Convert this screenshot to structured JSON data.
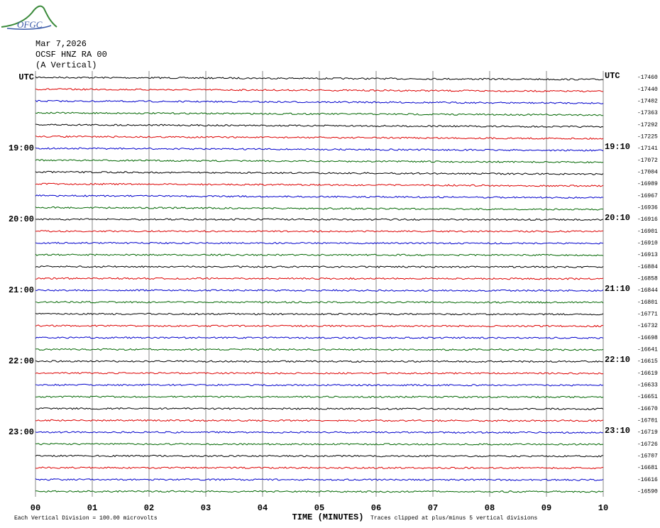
{
  "logo": "OFGC",
  "header": {
    "date": "Mar 7,2026",
    "station": "OCSF HNZ RA 00",
    "component": "(A Vertical)"
  },
  "left_labels": [
    "UTC",
    "19:00",
    "20:00",
    "21:00",
    "22:00",
    "23:00"
  ],
  "right_labels": [
    "UTC",
    "19:10",
    "20:10",
    "21:10",
    "22:10",
    "23:10"
  ],
  "offsets": [
    -17460,
    -17440,
    -17402,
    -17363,
    -17292,
    -17225,
    -17141,
    -17072,
    -17004,
    -16989,
    -16967,
    -16936,
    -16916,
    -16901,
    -16910,
    -16913,
    -16884,
    -16858,
    -16844,
    -16801,
    -16771,
    -16732,
    -16698,
    -16641,
    -16615,
    -16619,
    -16633,
    -16651,
    -16670,
    -16701,
    -16719,
    -16726,
    -16707,
    -16681,
    -16616,
    -16590
  ],
  "x_ticks": [
    "00",
    "01",
    "02",
    "03",
    "04",
    "05",
    "06",
    "07",
    "08",
    "09",
    "10"
  ],
  "footer": {
    "scale": "Each Vertical Division =  100.00 microvolts",
    "axis_title": "TIME (MINUTES)",
    "note": "Traces clipped at plus/minus 5 vertical divisions"
  }
}
